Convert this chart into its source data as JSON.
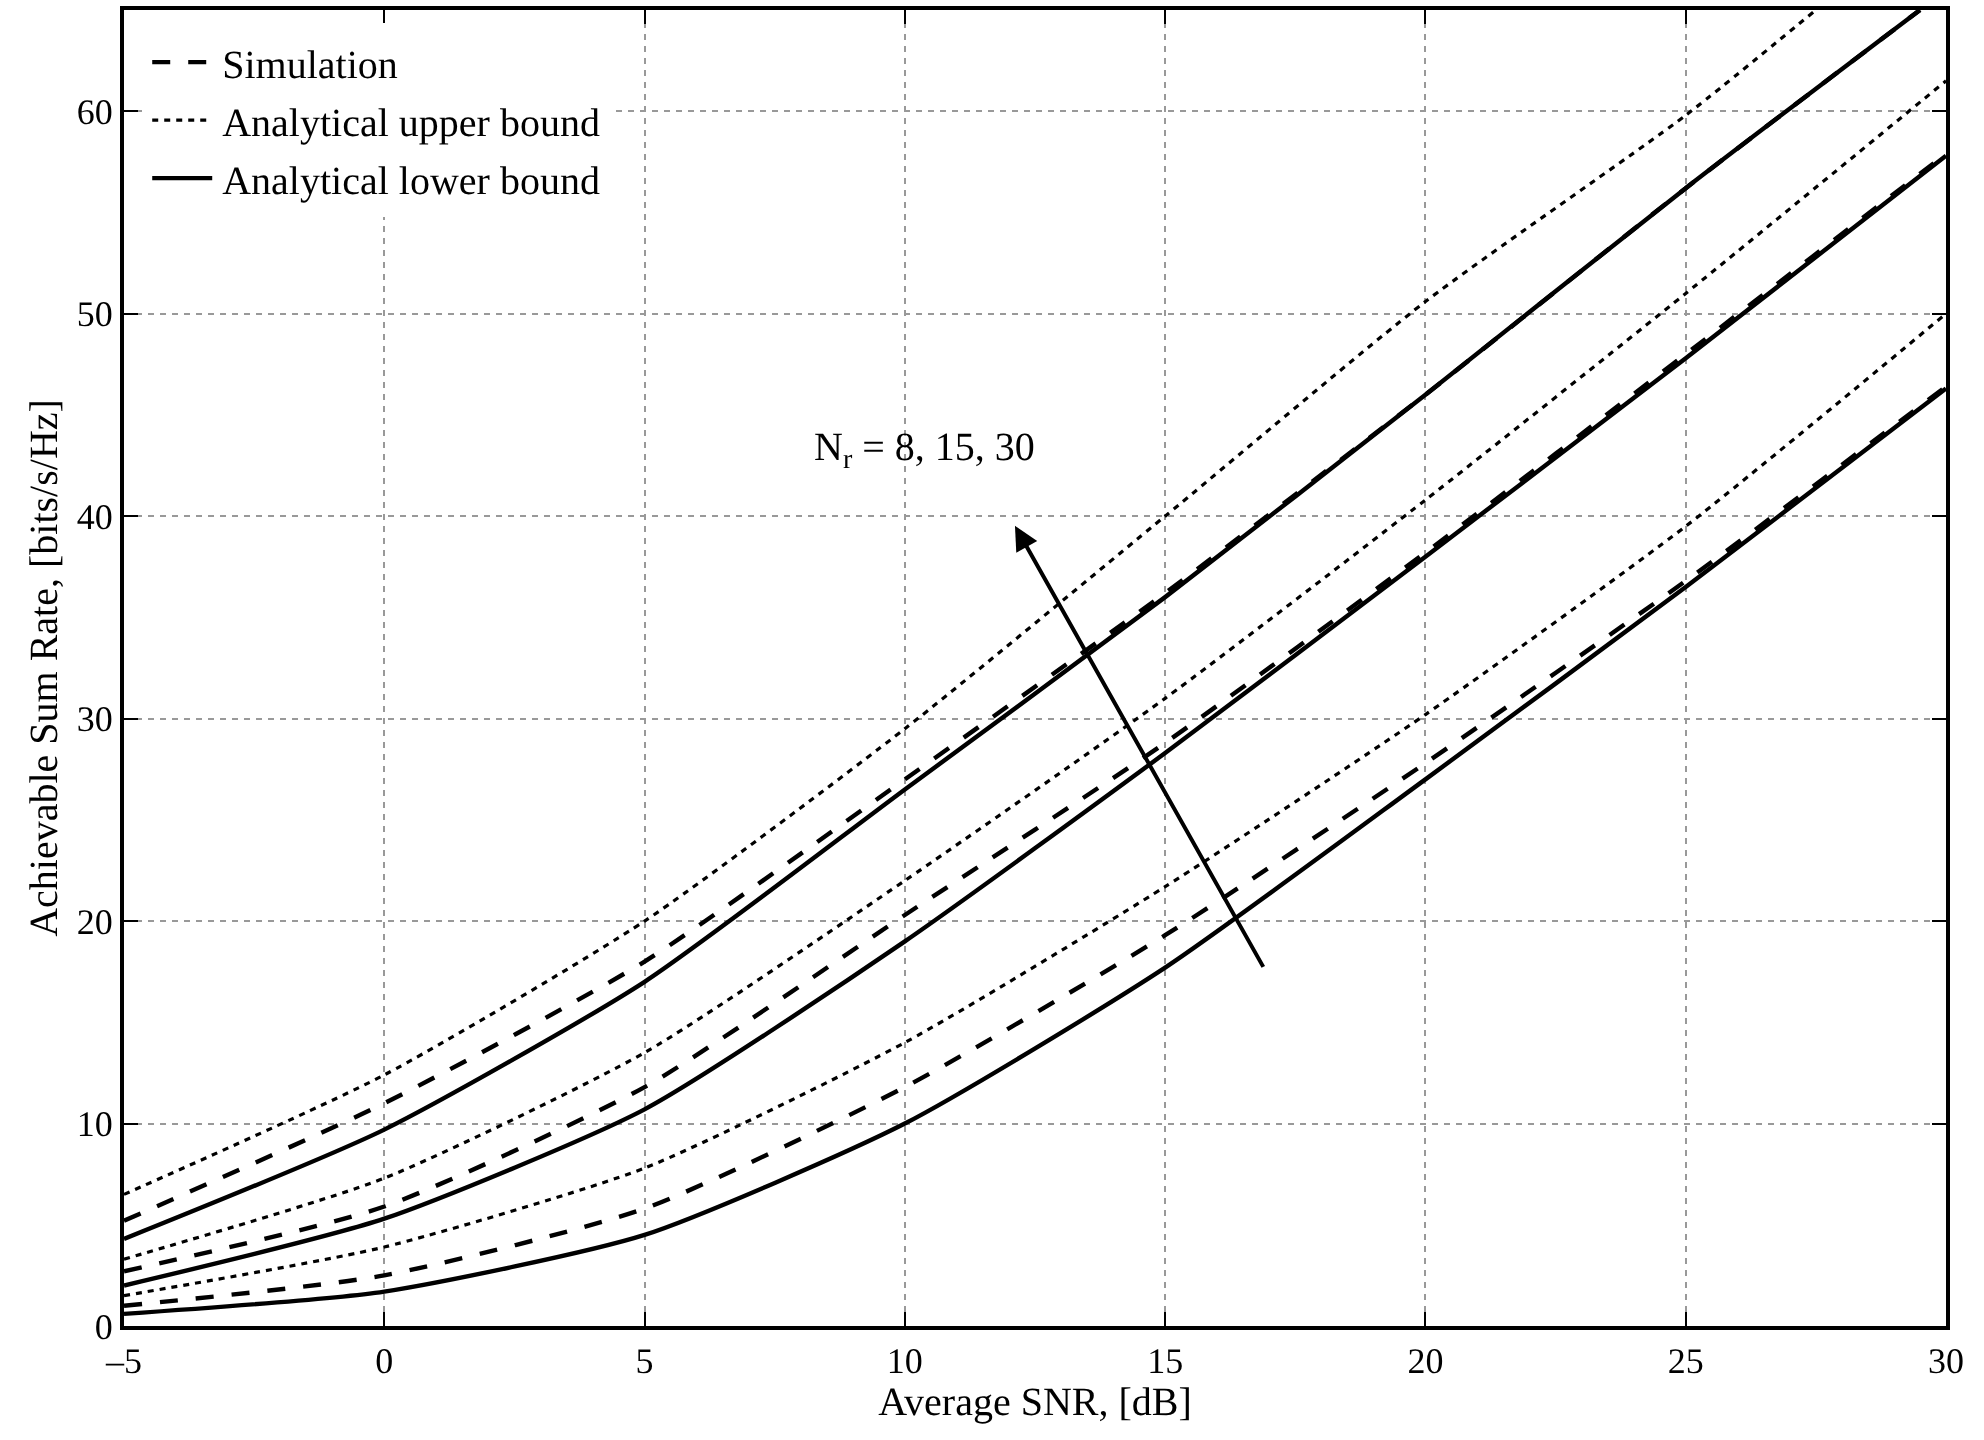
{
  "chart_data": {
    "type": "line",
    "xlabel": "Average SNR, [dB]",
    "ylabel": "Achievable Sum Rate, [bits/s/Hz]",
    "x": [
      -5,
      0,
      5,
      10,
      15,
      20,
      25,
      30
    ],
    "series": [
      {
        "name": "Simulation",
        "color": "#000000",
        "line_style": "dashed",
        "values": [
          1.0,
          2.5,
          5.8,
          11.8,
          19.3,
          27.8,
          36.8,
          46.4
        ]
      },
      {
        "name": "Analytical upper bound",
        "color": "#000000",
        "line_style": "dotted",
        "values": [
          1.5,
          3.9,
          7.8,
          14.0,
          21.7,
          30.2,
          39.5,
          50.0
        ]
      },
      {
        "name": "Analytical lower bound",
        "color": "#000000",
        "line_style": "solid",
        "values": [
          0.6,
          1.7,
          4.5,
          10.0,
          17.7,
          27.0,
          36.5,
          46.3
        ]
      },
      {
        "color": "#000000",
        "line_style": "dashed",
        "values": [
          2.7,
          5.9,
          11.8,
          20.3,
          28.8,
          38.2,
          48.0,
          57.9
        ]
      },
      {
        "color": "#000000",
        "line_style": "dotted",
        "values": [
          3.3,
          7.3,
          13.5,
          22.0,
          31.0,
          40.8,
          51.0,
          61.5
        ]
      },
      {
        "color": "#000000",
        "line_style": "solid",
        "values": [
          2.0,
          5.3,
          10.7,
          19.0,
          28.3,
          38.0,
          47.8,
          57.8
        ]
      },
      {
        "color": "#000000",
        "line_style": "dashed",
        "x": [
          -5,
          0,
          5,
          10,
          15,
          20,
          25,
          29.5
        ],
        "values": [
          5.2,
          11.0,
          18.0,
          27.0,
          36.2,
          46.0,
          56.2,
          65.0
        ]
      },
      {
        "color": "#000000",
        "line_style": "dotted",
        "x": [
          -5,
          0,
          5,
          10,
          15,
          20,
          25,
          27.5
        ],
        "values": [
          6.5,
          12.4,
          20.0,
          29.5,
          40.0,
          50.6,
          59.8,
          65.0
        ]
      },
      {
        "color": "#000000",
        "line_style": "solid",
        "x": [
          -5,
          0,
          5,
          10,
          15,
          20,
          25,
          29.5
        ],
        "values": [
          4.3,
          9.7,
          17.0,
          26.5,
          36.0,
          46.0,
          56.2,
          65.0
        ]
      }
    ],
    "annotations": [
      "N$_{r}$ = 8, 15, 30"
    ],
    "xlim": [
      -5,
      30
    ],
    "xticks": [
      {
        "value": -5,
        "label": "–5"
      },
      0,
      5,
      10,
      15,
      20,
      25,
      30
    ],
    "ylim": [
      0,
      65
    ],
    "yticks": [
      0,
      10,
      20,
      30,
      40,
      50,
      60
    ],
    "grid": true,
    "legend": "top left",
    "marker": "none"
  }
}
